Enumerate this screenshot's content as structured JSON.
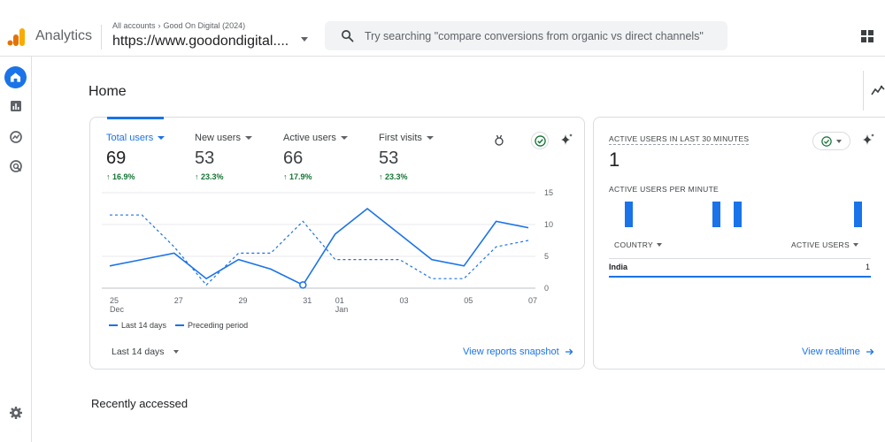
{
  "header": {
    "app_name": "Analytics",
    "crumb_all_accounts": "All accounts",
    "crumb_account": "Good On Digital (2024)",
    "property": "https://www.goodondigital....",
    "search_placeholder": "Try searching \"compare conversions from organic vs direct channels\""
  },
  "nav": {
    "items": [
      "home-icon",
      "reports-icon",
      "explore-icon",
      "advertising-icon"
    ],
    "settings": "gear-icon"
  },
  "page": {
    "title": "Home"
  },
  "overview": {
    "metrics": [
      {
        "label": "Total users",
        "value": "69",
        "change": "↑ 16.9%",
        "active": true
      },
      {
        "label": "New users",
        "value": "53",
        "change": "↑ 23.3%",
        "active": false
      },
      {
        "label": "Active users",
        "value": "66",
        "change": "↑ 17.9%",
        "active": false
      },
      {
        "label": "First visits",
        "value": "53",
        "change": "↑ 23.3%",
        "active": false
      }
    ],
    "legend_current": "Last 14 days",
    "legend_previous": "Preceding period",
    "date_range": "Last 14 days",
    "link": "View reports snapshot"
  },
  "chart_data": {
    "type": "line",
    "x": [
      "25 Dec",
      "26 Dec",
      "27 Dec",
      "28 Dec",
      "29 Dec",
      "30 Dec",
      "31 Dec",
      "01 Jan",
      "02 Jan",
      "03 Jan",
      "04 Jan",
      "05 Jan",
      "06 Jan",
      "07 Jan"
    ],
    "x_tick_labels": [
      {
        "top": "25",
        "bottom": "Dec"
      },
      {
        "top": "27",
        "bottom": ""
      },
      {
        "top": "29",
        "bottom": ""
      },
      {
        "top": "31",
        "bottom": ""
      },
      {
        "top": "01",
        "bottom": "Jan"
      },
      {
        "top": "03",
        "bottom": ""
      },
      {
        "top": "05",
        "bottom": ""
      },
      {
        "top": "07",
        "bottom": ""
      }
    ],
    "x_tick_index": [
      0,
      2,
      4,
      6,
      7,
      9,
      11,
      13
    ],
    "y_ticks": [
      "15",
      "10",
      "5",
      "0"
    ],
    "ylim": [
      0,
      15
    ],
    "series": [
      {
        "name": "Last 14 days",
        "style": "solid",
        "values": [
          3.5,
          4.5,
          5.5,
          1.5,
          4.5,
          3,
          0.5,
          8.5,
          12.5,
          8.5,
          4.5,
          3.5,
          10.5,
          9.5
        ]
      },
      {
        "name": "Preceding period",
        "style": "dashed",
        "values": [
          11.5,
          11.5,
          6.5,
          0.5,
          5.5,
          5.5,
          10.5,
          4.5,
          4.5,
          4.5,
          1.5,
          1.5,
          6.5,
          7.5
        ]
      }
    ],
    "grid": true,
    "color": "#1a73e8"
  },
  "realtime": {
    "title": "ACTIVE USERS IN LAST 30 MINUTES",
    "value": "1",
    "per_minute_label": "ACTIVE USERS PER MINUTE",
    "per_minute_values": [
      1,
      0,
      0,
      0,
      0,
      0,
      0,
      0,
      1,
      0,
      1,
      0,
      0,
      0,
      0,
      0,
      0,
      0,
      0,
      0,
      0,
      1
    ],
    "col_country": "COUNTRY",
    "col_users": "ACTIVE USERS",
    "rows": [
      {
        "country": "India",
        "users": "1"
      }
    ],
    "link": "View realtime"
  },
  "recent": {
    "title": "Recently accessed"
  },
  "colors": {
    "accent": "#1a73e8",
    "positive": "#137333",
    "logo_orange": "#f9ab00",
    "logo_dark": "#e37400"
  }
}
